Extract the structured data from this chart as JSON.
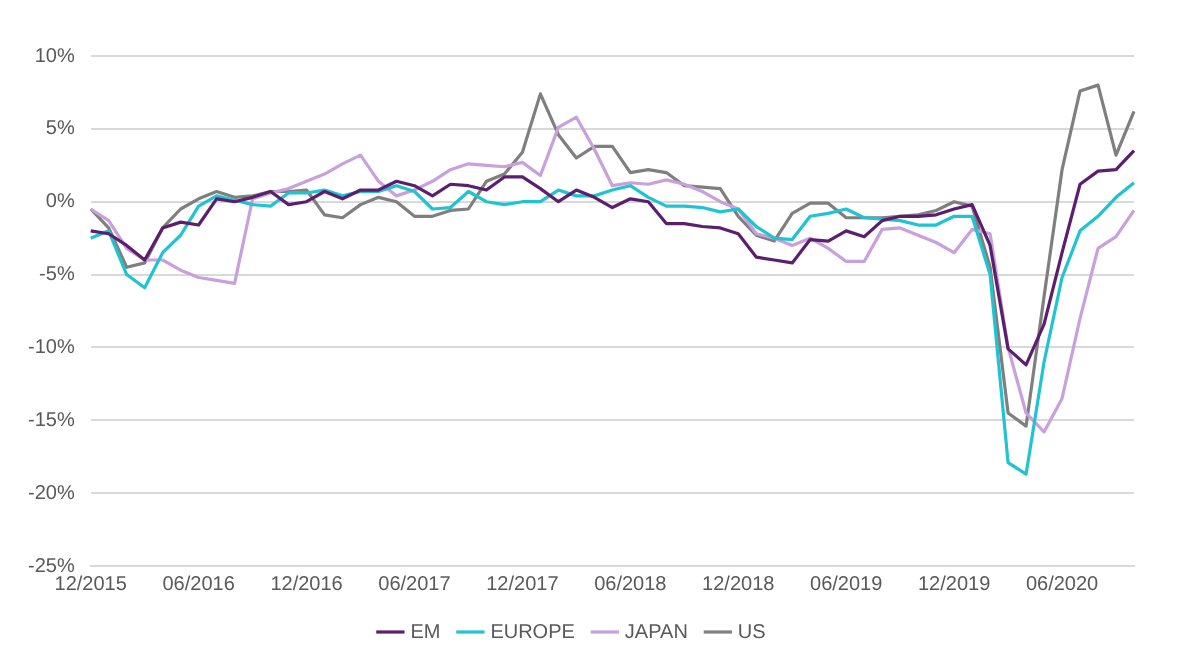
{
  "chart_data": {
    "type": "line",
    "categories": [
      "12/2015",
      null,
      null,
      null,
      null,
      null,
      "06/2016",
      null,
      null,
      null,
      null,
      null,
      "12/2016",
      null,
      null,
      null,
      null,
      null,
      "06/2017",
      null,
      null,
      null,
      null,
      null,
      "12/2017",
      null,
      null,
      null,
      null,
      null,
      "06/2018",
      null,
      null,
      null,
      null,
      null,
      "12/2018",
      null,
      null,
      null,
      null,
      null,
      "06/2019",
      null,
      null,
      null,
      null,
      null,
      "12/2019",
      null,
      null,
      null,
      null,
      null,
      "06/2020",
      null,
      null,
      null,
      null
    ],
    "series": [
      {
        "name": "EM",
        "color": "#5b1f6e",
        "values": [
          -2.0,
          -2.2,
          -3.0,
          -4.0,
          -1.8,
          -1.4,
          -1.6,
          0.2,
          0,
          0.3,
          0.7,
          -0.2,
          0,
          0.7,
          0.2,
          0.8,
          0.8,
          1.4,
          1.1,
          0.4,
          1.2,
          1.1,
          0.8,
          1.7,
          1.7,
          0.9,
          0,
          0.8,
          0.3,
          -0.4,
          0.2,
          0,
          -1.5,
          -1.5,
          -1.7,
          -1.8,
          -2.2,
          -3.8,
          -4.0,
          -4.2,
          -2.6,
          -2.7,
          -2.0,
          -2.4,
          -1.3,
          -1.0,
          -1.0,
          -0.9,
          -0.5,
          -0.2,
          -3.0,
          -10.1,
          -11.2,
          -8.4,
          -3.5,
          1.2,
          2.1,
          2.2,
          3.5
        ]
      },
      {
        "name": "EUROPE",
        "color": "#1fc3d2",
        "values": [
          -2.5,
          -2.0,
          -5.0,
          -5.9,
          -3.5,
          -2.3,
          -0.3,
          0.4,
          0.1,
          -0.2,
          -0.3,
          0.6,
          0.6,
          0.8,
          0.4,
          0.7,
          0.7,
          1.1,
          0.7,
          -0.5,
          -0.4,
          0.7,
          0,
          -0.2,
          0,
          0,
          0.8,
          0.4,
          0.4,
          0.8,
          1.1,
          0.3,
          -0.3,
          -0.3,
          -0.4,
          -0.7,
          -0.5,
          -1.7,
          -2.5,
          -2.6,
          -1.0,
          -0.8,
          -0.5,
          -1.1,
          -1.2,
          -1.3,
          -1.6,
          -1.6,
          -1.0,
          -1.0,
          -5.0,
          -17.9,
          -18.7,
          -11.0,
          -5.2,
          -2.0,
          -1.0,
          0.3,
          1.3
        ]
      },
      {
        "name": "JAPAN",
        "color": "#c9a0dc",
        "values": [
          -0.5,
          -1.3,
          -3.2,
          -4.0,
          -4.0,
          -4.7,
          -5.2,
          -5.4,
          -5.6,
          0.2,
          0.6,
          0.9,
          1.4,
          1.9,
          2.6,
          3.2,
          1.4,
          0.4,
          0.8,
          1.4,
          2.2,
          2.6,
          2.5,
          2.4,
          2.7,
          1.8,
          5.1,
          5.8,
          3.6,
          1.1,
          1.3,
          1.2,
          1.5,
          1.2,
          0.7,
          0,
          -0.5,
          -2.2,
          -2.5,
          -3.0,
          -2.5,
          -3.2,
          -4.1,
          -4.1,
          -1.9,
          -1.8,
          -2.3,
          -2.8,
          -3.5,
          -1.9,
          -2.2,
          -10.0,
          -14.5,
          -15.8,
          -13.5,
          -8.0,
          -3.2,
          -2.4,
          -0.6
        ]
      },
      {
        "name": "US",
        "color": "#7f7f7f",
        "values": [
          -0.5,
          -1.8,
          -4.5,
          -4.2,
          -1.8,
          -0.5,
          0.2,
          0.7,
          0.3,
          0.4,
          0.7,
          0.7,
          0.8,
          -0.9,
          -1.1,
          -0.2,
          0.3,
          0,
          -1.0,
          -1.0,
          -0.6,
          -0.5,
          1.4,
          1.9,
          3.4,
          7.4,
          4.6,
          3.0,
          3.8,
          3.8,
          2.0,
          2.2,
          2.0,
          1.1,
          1.0,
          0.9,
          -1.0,
          -2.3,
          -2.7,
          -0.8,
          -0.1,
          -0.1,
          -1.1,
          -1.1,
          -1.1,
          -1.0,
          -0.9,
          -0.6,
          0,
          -0.3,
          -4.5,
          -14.5,
          -15.4,
          -6.5,
          2.2,
          7.6,
          8.0,
          3.2,
          6.2
        ]
      }
    ],
    "ylim": [
      -25,
      10
    ],
    "yticks": [
      {
        "value": -25,
        "label": "-25%"
      },
      {
        "value": -20,
        "label": "-20%"
      },
      {
        "value": -15,
        "label": "-15%"
      },
      {
        "value": -10,
        "label": "-10%"
      },
      {
        "value": -5,
        "label": "-5%"
      },
      {
        "value": 0,
        "label": "0%"
      },
      {
        "value": 5,
        "label": "5%"
      },
      {
        "value": 10,
        "label": "10%"
      }
    ],
    "grid": "y",
    "legend": "bottom",
    "marker": "none",
    "line_style": "solid"
  }
}
